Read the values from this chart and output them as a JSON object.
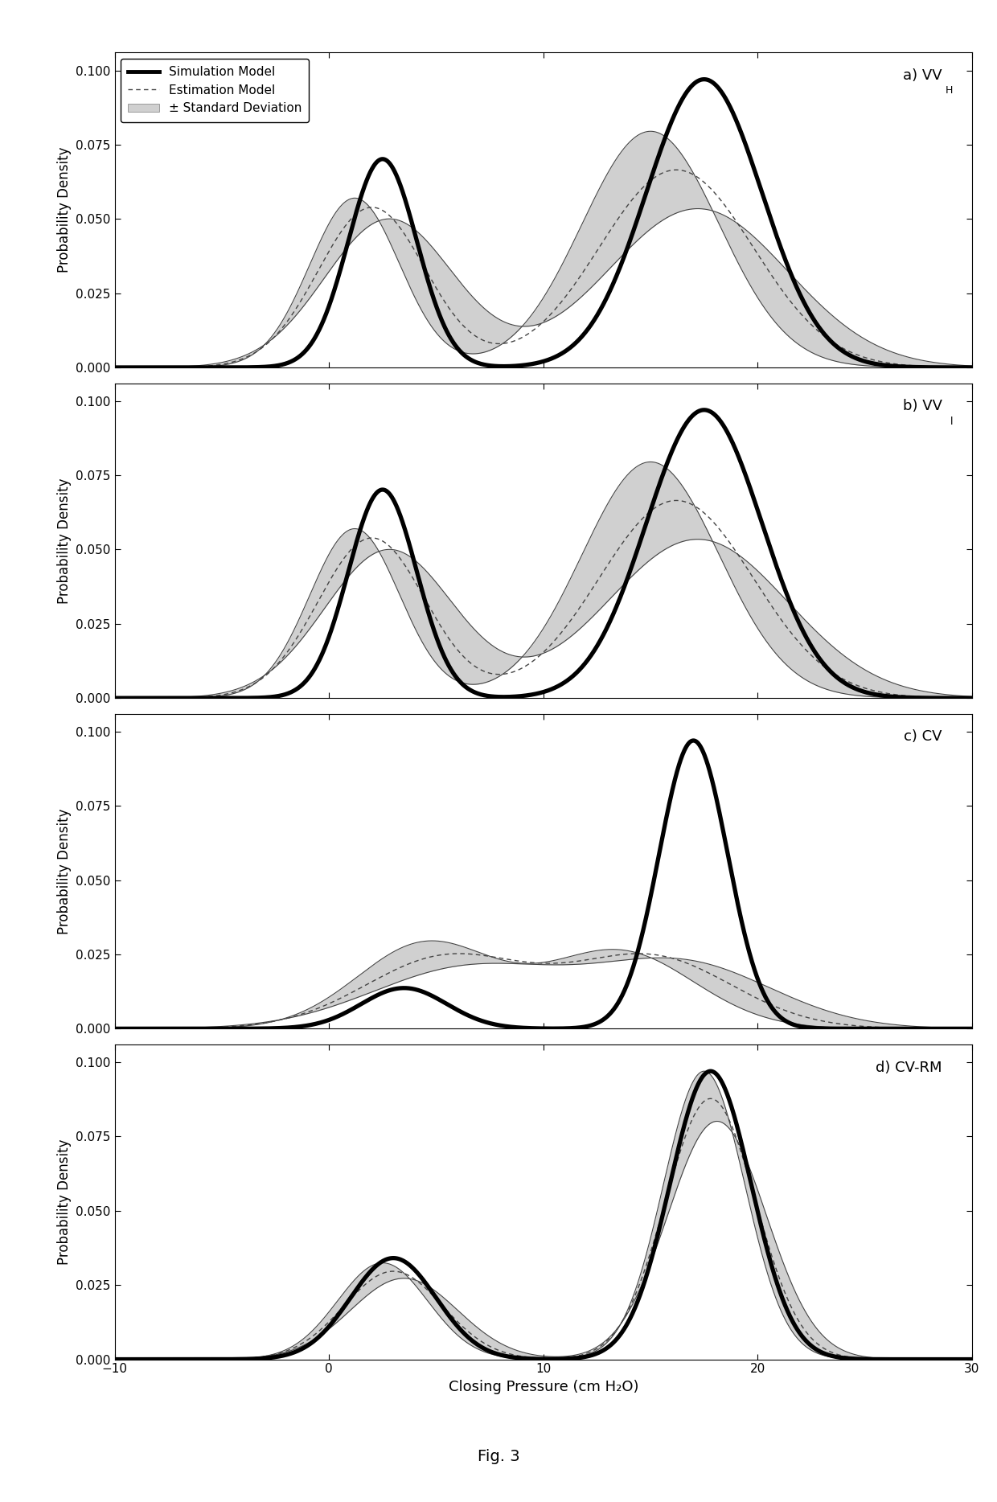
{
  "xlim": [
    -10,
    30
  ],
  "ylim": [
    0.0,
    0.106
  ],
  "yticks": [
    0.0,
    0.025,
    0.05,
    0.075,
    0.1
  ],
  "xticks": [
    -10,
    0,
    10,
    20,
    30
  ],
  "xlabel": "Closing Pressure (cm H₂O)",
  "ylabel": "Probability Density",
  "fig_label": "Fig. 3",
  "background_color": "#ffffff",
  "sim_color": "#000000",
  "est_color": "#444444",
  "fill_color": "#aaaaaa",
  "fill_alpha": 0.55,
  "sim_lw": 3.8,
  "est_lw": 1.0,
  "bound_lw": 0.8,
  "panels": [
    {
      "label": "a) VV",
      "label_sub": "H",
      "has_legend": true
    },
    {
      "label": "b) VV",
      "label_sub": "l",
      "has_legend": false
    },
    {
      "label": "c) CV",
      "label_sub": "",
      "has_legend": false
    },
    {
      "label": "d) CV-RM",
      "label_sub": "",
      "has_legend": false
    }
  ]
}
